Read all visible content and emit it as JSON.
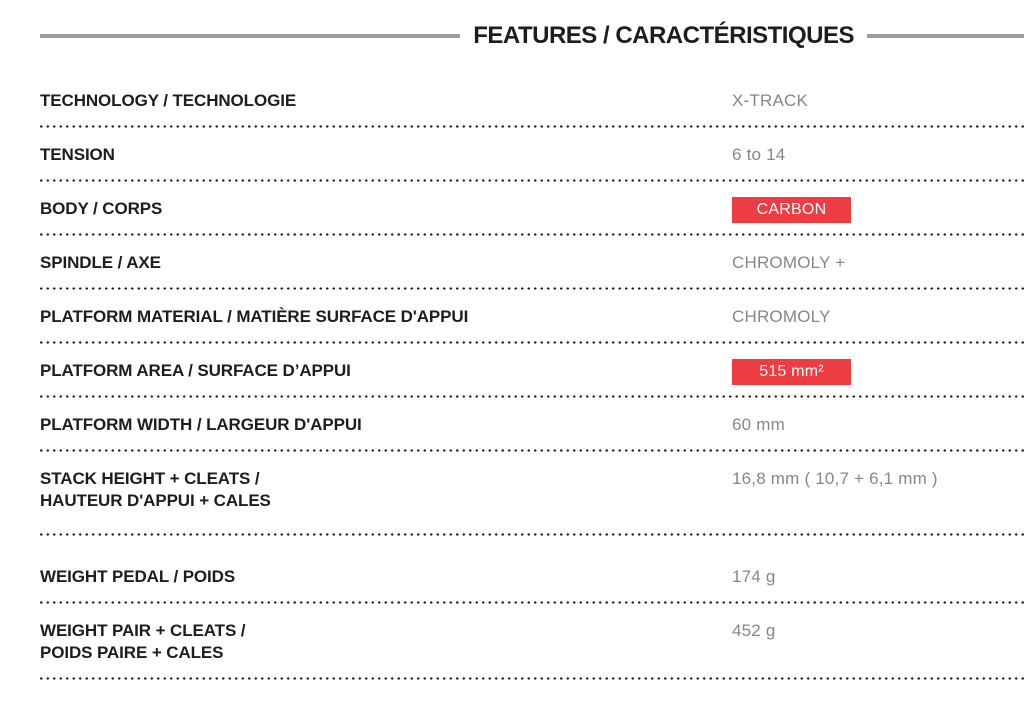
{
  "header": {
    "title": "FEATURES / CARACTÉRISTIQUES"
  },
  "colors": {
    "accent_red": "#ee3c43",
    "badge_text": "#ffffff",
    "label_text": "#1d1d1b",
    "value_text": "#878787",
    "header_line": "#9c9c9c",
    "dot_color": "#1d1d1b"
  },
  "table": {
    "rows": [
      {
        "label_lines": [
          "TECHNOLOGY / TECHNOLOGIE"
        ],
        "value": "X-TRACK",
        "highlight": false
      },
      {
        "label_lines": [
          "TENSION"
        ],
        "value": "6 to 14",
        "highlight": false
      },
      {
        "label_lines": [
          "BODY / CORPS"
        ],
        "value": "CARBON",
        "highlight": true
      },
      {
        "label_lines": [
          "SPINDLE / AXE"
        ],
        "value": "CHROMOLY +",
        "highlight": false
      },
      {
        "label_lines": [
          "PLATFORM MATERIAL / MATIÈRE SURFACE D'APPUI"
        ],
        "value": "CHROMOLY",
        "highlight": false
      },
      {
        "label_lines": [
          "PLATFORM AREA / SURFACE D’APPUI"
        ],
        "value": "515 mm²",
        "highlight": true
      },
      {
        "label_lines": [
          "PLATFORM WIDTH / LARGEUR D'APPUI"
        ],
        "value": "60 mm",
        "highlight": false
      },
      {
        "label_lines": [
          "STACK HEIGHT + CLEATS /",
          "HAUTEUR D'APPUI + CALES"
        ],
        "value": "16,8 mm ( 10,7 + 6,1 mm )",
        "highlight": false
      },
      {
        "label_lines": [
          "WEIGHT PEDAL / POIDS"
        ],
        "value": "174 g",
        "highlight": false
      },
      {
        "label_lines": [
          "WEIGHT PAIR + CLEATS /",
          "POIDS PAIRE + CALES"
        ],
        "value": "452 g",
        "highlight": false
      }
    ]
  }
}
